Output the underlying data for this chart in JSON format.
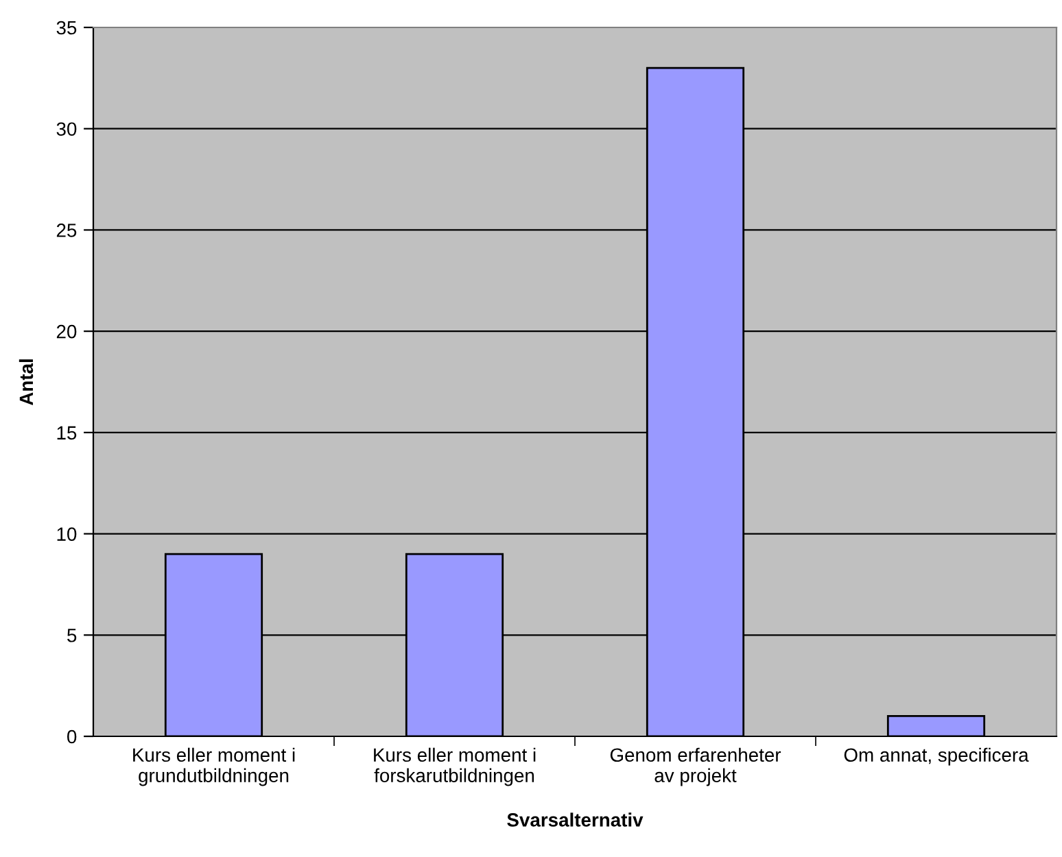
{
  "chart_data": {
    "type": "bar",
    "xlabel": "Svarsalternativ",
    "ylabel": "Antal",
    "categories": [
      "Kurs eller moment i\ngrundutbildningen",
      "Kurs eller moment i\nforskarutbildningen",
      "Genom erfarenheter\nav projekt",
      "Om annat, specificera"
    ],
    "values": [
      9,
      9,
      33,
      1
    ],
    "color": "#9999ff",
    "ylim": [
      0,
      35
    ],
    "yticks": [
      0,
      5,
      10,
      15,
      20,
      25,
      30,
      35
    ],
    "grid": "y"
  }
}
